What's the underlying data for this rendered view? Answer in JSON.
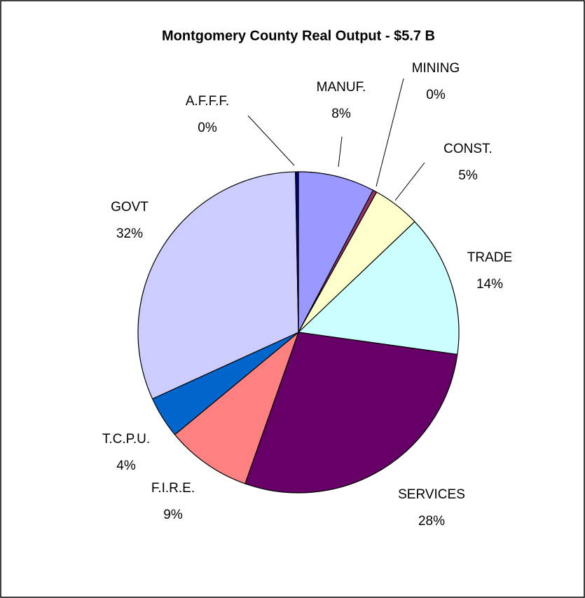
{
  "chart_data": {
    "type": "pie",
    "title": "Montgomery County Real Output - $5.7 B",
    "categories": [
      "MANUF.",
      "MINING",
      "CONST.",
      "TRADE",
      "SERVICES",
      "F.I.R.E.",
      "T.C.P.U.",
      "GOVT",
      "A.F.F.F."
    ],
    "values": [
      7.7,
      0.4,
      4.8,
      14.3,
      28.2,
      8.6,
      4.2,
      31.5,
      0.3
    ],
    "value_labels": [
      "8%",
      "0%",
      "5%",
      "14%",
      "28%",
      "9%",
      "4%",
      "32%",
      "0%"
    ],
    "colors": [
      "#9999ff",
      "#993366",
      "#ffffcc",
      "#ccffff",
      "#660066",
      "#ff8080",
      "#0066cc",
      "#ccccff",
      "#000080"
    ]
  }
}
